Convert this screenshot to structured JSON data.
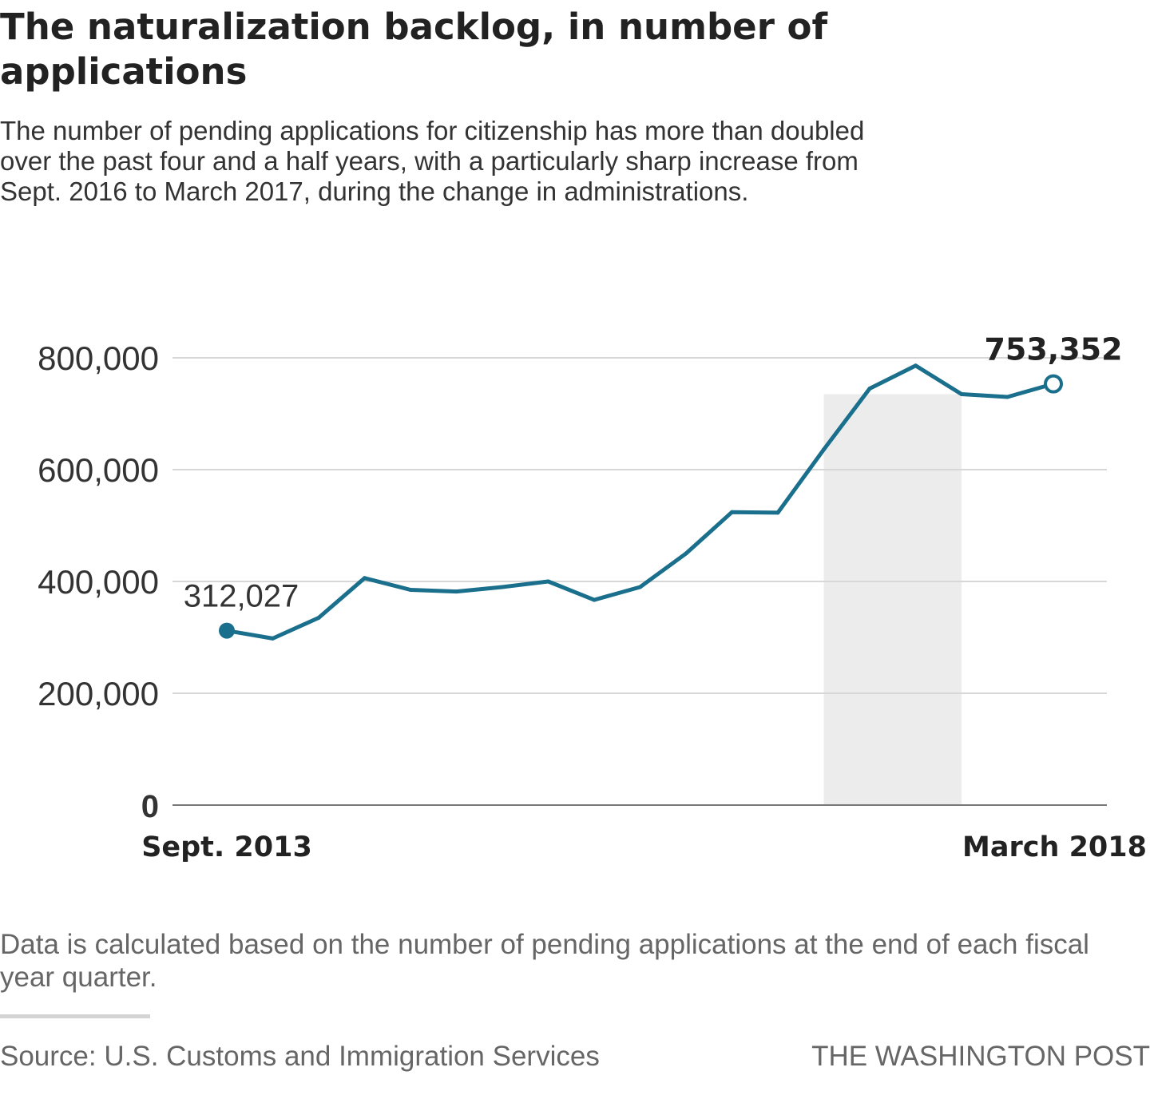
{
  "title": "The naturalization backlog, in number of applications",
  "subtitle": "The number of pending applications for citizenship has more than doubled over the past four and a half years, with a particularly sharp increase from Sept. 2016 to March 2017, during the change in administrations.",
  "footnote": "Data is calculated based on the number of pending applications at the end of each fiscal year quarter.",
  "source": "Source: U.S. Customs and Immigration Services",
  "credit": "THE WASHINGTON POST",
  "colors": {
    "line": "#1a6f8c",
    "highlight": "#ececec",
    "grid": "#d7d7d7",
    "axis": "#777777"
  },
  "chart_data": {
    "type": "line",
    "title": "The naturalization backlog, in number of applications",
    "xlabel": "",
    "ylabel": "",
    "ylim": [
      0,
      800000
    ],
    "yticks": [
      0,
      200000,
      400000,
      600000,
      800000
    ],
    "ytick_labels": [
      "0",
      "200,000",
      "400,000",
      "600,000",
      "800,000"
    ],
    "x_start_label": "Sept. 2013",
    "x_end_label": "March 2018",
    "start_label": "312,027",
    "end_label": "753,352",
    "highlight_range": [
      13,
      16
    ],
    "series": [
      {
        "name": "Pending applications",
        "values": [
          312027,
          298000,
          335000,
          406000,
          385000,
          382000,
          390000,
          400000,
          367000,
          390000,
          450000,
          524000,
          523000,
          636000,
          745000,
          786000,
          735000,
          730000,
          753352
        ]
      }
    ]
  }
}
